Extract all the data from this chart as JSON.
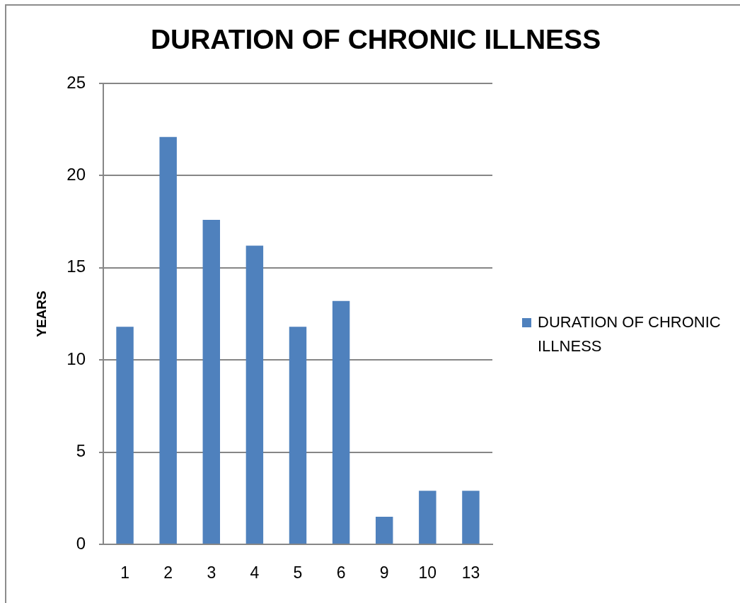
{
  "chart_data": {
    "type": "bar",
    "title": "DURATION OF CHRONIC ILLNESS",
    "ylabel": "YEARS",
    "categories": [
      "1",
      "2",
      "3",
      "4",
      "5",
      "6",
      "9",
      "10",
      "13"
    ],
    "series": [
      {
        "name": "DURATION OF CHRONIC ILLNESS",
        "color": "#4f81bd",
        "values": [
          11.8,
          22.1,
          17.6,
          16.2,
          11.8,
          13.2,
          1.5,
          2.9,
          2.9
        ]
      }
    ],
    "ylim": [
      0,
      25
    ],
    "yticks": [
      0,
      5,
      10,
      15,
      20,
      25
    ],
    "grid": "y",
    "legend": "right"
  }
}
